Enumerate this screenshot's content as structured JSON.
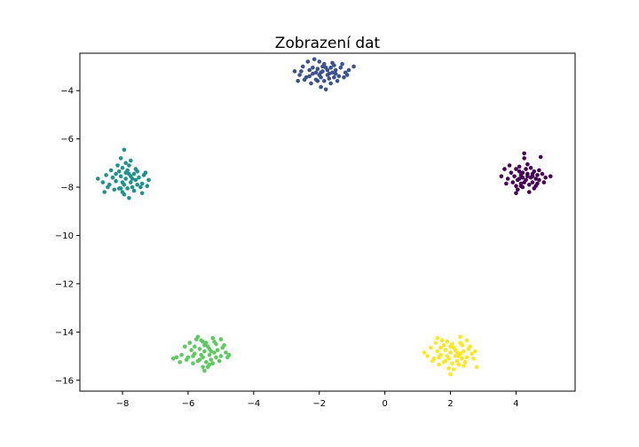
{
  "chart_data": {
    "type": "scatter",
    "title": "Zobrazení dat",
    "xlabel": "",
    "ylabel": "",
    "xlim": [
      -9.3,
      5.8
    ],
    "ylim": [
      -16.45,
      -2.45
    ],
    "xticks": [
      -8,
      -6,
      -4,
      -2,
      0,
      2,
      4
    ],
    "yticks": [
      -4,
      -6,
      -8,
      -10,
      -12,
      -14,
      -16
    ],
    "xtick_labels": [
      "−8",
      "−6",
      "−4",
      "−2",
      "0",
      "2",
      "4"
    ],
    "ytick_labels": [
      "−4",
      "−6",
      "−8",
      "−10",
      "−12",
      "−14",
      "−16"
    ],
    "grid": false,
    "legend": "none",
    "clusters": [
      {
        "color": "#440154",
        "points": [
          [
            4.2,
            -7.6
          ],
          [
            4.35,
            -7.55
          ],
          [
            4.05,
            -7.7
          ],
          [
            4.5,
            -7.45
          ],
          [
            4.1,
            -7.35
          ],
          [
            4.25,
            -7.8
          ],
          [
            3.95,
            -7.55
          ],
          [
            4.4,
            -7.9
          ],
          [
            4.6,
            -7.65
          ],
          [
            4.15,
            -7.5
          ],
          [
            3.85,
            -7.4
          ],
          [
            4.3,
            -7.25
          ],
          [
            4.7,
            -7.7
          ],
          [
            4.0,
            -7.95
          ],
          [
            4.45,
            -7.6
          ],
          [
            4.55,
            -7.35
          ],
          [
            3.75,
            -7.65
          ],
          [
            4.2,
            -8.0
          ],
          [
            4.65,
            -7.5
          ],
          [
            4.1,
            -7.15
          ],
          [
            4.35,
            -7.05
          ],
          [
            4.8,
            -7.45
          ],
          [
            3.65,
            -7.25
          ],
          [
            4.9,
            -7.6
          ],
          [
            4.25,
            -6.8
          ],
          [
            4.75,
            -6.75
          ],
          [
            3.55,
            -7.55
          ],
          [
            4.4,
            -8.2
          ],
          [
            4.05,
            -8.1
          ],
          [
            5.05,
            -7.55
          ],
          [
            4.5,
            -7.8
          ],
          [
            3.9,
            -7.8
          ],
          [
            4.15,
            -7.85
          ],
          [
            4.6,
            -7.95
          ],
          [
            4.3,
            -7.7
          ],
          [
            4.0,
            -7.25
          ],
          [
            4.45,
            -7.2
          ],
          [
            4.55,
            -8.05
          ],
          [
            3.8,
            -7.1
          ],
          [
            4.2,
            -7.4
          ],
          [
            4.7,
            -7.3
          ],
          [
            4.1,
            -7.65
          ],
          [
            4.35,
            -7.45
          ],
          [
            3.7,
            -7.85
          ],
          [
            4.85,
            -7.8
          ],
          [
            4.25,
            -6.6
          ],
          [
            4.0,
            -8.25
          ],
          [
            4.5,
            -7.55
          ],
          [
            4.65,
            -7.85
          ],
          [
            4.15,
            -7.95
          ]
        ]
      },
      {
        "color": "#3b528b",
        "points": [
          [
            -1.9,
            -3.2
          ],
          [
            -1.75,
            -3.35
          ],
          [
            -2.05,
            -3.1
          ],
          [
            -1.6,
            -3.25
          ],
          [
            -1.95,
            -3.45
          ],
          [
            -1.8,
            -3.05
          ],
          [
            -2.2,
            -3.3
          ],
          [
            -1.7,
            -3.5
          ],
          [
            -1.5,
            -3.15
          ],
          [
            -2.1,
            -3.55
          ],
          [
            -1.85,
            -2.9
          ],
          [
            -2.3,
            -3.15
          ],
          [
            -1.4,
            -3.4
          ],
          [
            -2.0,
            -2.8
          ],
          [
            -1.65,
            -3.7
          ],
          [
            -2.4,
            -3.45
          ],
          [
            -1.55,
            -2.95
          ],
          [
            -1.2,
            -3.25
          ],
          [
            -2.5,
            -3.0
          ],
          [
            -1.95,
            -3.85
          ],
          [
            -2.25,
            -3.7
          ],
          [
            -1.35,
            -3.05
          ],
          [
            -2.6,
            -3.35
          ],
          [
            -1.1,
            -3.15
          ],
          [
            -2.35,
            -2.8
          ],
          [
            -0.95,
            -3.0
          ],
          [
            -2.15,
            -2.7
          ],
          [
            -2.75,
            -3.2
          ],
          [
            -1.8,
            -3.95
          ],
          [
            -1.45,
            -3.6
          ],
          [
            -2.05,
            -3.6
          ],
          [
            -1.7,
            -3.3
          ],
          [
            -1.9,
            -3.0
          ],
          [
            -1.6,
            -2.85
          ],
          [
            -2.45,
            -3.55
          ],
          [
            -1.25,
            -3.45
          ],
          [
            -2.2,
            -3.05
          ],
          [
            -1.75,
            -3.15
          ],
          [
            -2.0,
            -3.35
          ],
          [
            -1.55,
            -3.45
          ],
          [
            -1.85,
            -3.6
          ],
          [
            -2.65,
            -3.6
          ],
          [
            -1.3,
            -2.9
          ],
          [
            -2.1,
            -3.25
          ],
          [
            -1.65,
            -3.05
          ],
          [
            -1.95,
            -3.25
          ],
          [
            -1.5,
            -3.3
          ],
          [
            -2.3,
            -3.4
          ],
          [
            -1.15,
            -3.35
          ],
          [
            -2.55,
            -3.2
          ]
        ]
      },
      {
        "color": "#21918c",
        "points": [
          [
            -7.9,
            -7.65
          ],
          [
            -7.75,
            -7.8
          ],
          [
            -8.05,
            -7.55
          ],
          [
            -7.6,
            -7.7
          ],
          [
            -7.95,
            -7.9
          ],
          [
            -7.8,
            -7.45
          ],
          [
            -8.2,
            -7.75
          ],
          [
            -7.7,
            -8.0
          ],
          [
            -7.5,
            -7.6
          ],
          [
            -8.1,
            -8.05
          ],
          [
            -7.85,
            -7.3
          ],
          [
            -8.3,
            -7.6
          ],
          [
            -7.4,
            -7.85
          ],
          [
            -8.0,
            -7.2
          ],
          [
            -7.65,
            -8.15
          ],
          [
            -8.4,
            -7.9
          ],
          [
            -7.55,
            -7.35
          ],
          [
            -7.2,
            -7.7
          ],
          [
            -8.5,
            -7.5
          ],
          [
            -7.95,
            -8.3
          ],
          [
            -8.25,
            -8.1
          ],
          [
            -7.35,
            -7.5
          ],
          [
            -8.6,
            -7.8
          ],
          [
            -7.25,
            -7.95
          ],
          [
            -8.35,
            -7.3
          ],
          [
            -7.9,
            -7.0
          ],
          [
            -8.15,
            -7.1
          ],
          [
            -8.75,
            -7.65
          ],
          [
            -7.8,
            -8.45
          ],
          [
            -7.45,
            -8.0
          ],
          [
            -8.05,
            -8.05
          ],
          [
            -7.7,
            -7.65
          ],
          [
            -7.9,
            -7.4
          ],
          [
            -7.6,
            -7.25
          ],
          [
            -8.45,
            -8.0
          ],
          [
            -7.3,
            -7.4
          ],
          [
            -8.2,
            -7.45
          ],
          [
            -7.75,
            -7.55
          ],
          [
            -8.0,
            -7.8
          ],
          [
            -7.55,
            -7.9
          ],
          [
            -7.85,
            -8.05
          ],
          [
            -8.05,
            -6.8
          ],
          [
            -7.95,
            -6.45
          ],
          [
            -7.75,
            -6.9
          ],
          [
            -7.8,
            -7.1
          ],
          [
            -8.55,
            -8.2
          ],
          [
            -7.4,
            -8.25
          ],
          [
            -8.1,
            -7.35
          ],
          [
            -7.65,
            -7.45
          ],
          [
            -8.0,
            -8.2
          ]
        ]
      },
      {
        "color": "#5ec962",
        "points": [
          [
            -5.5,
            -14.8
          ],
          [
            -5.35,
            -14.95
          ],
          [
            -5.65,
            -14.7
          ],
          [
            -5.2,
            -14.85
          ],
          [
            -5.55,
            -15.05
          ],
          [
            -5.4,
            -14.6
          ],
          [
            -5.8,
            -14.9
          ],
          [
            -5.3,
            -15.15
          ],
          [
            -5.1,
            -14.75
          ],
          [
            -5.7,
            -15.2
          ],
          [
            -5.45,
            -14.45
          ],
          [
            -5.9,
            -14.75
          ],
          [
            -5.0,
            -15.0
          ],
          [
            -5.6,
            -14.35
          ],
          [
            -5.25,
            -15.3
          ],
          [
            -6.0,
            -15.05
          ],
          [
            -5.15,
            -14.5
          ],
          [
            -4.85,
            -14.85
          ],
          [
            -6.1,
            -14.6
          ],
          [
            -5.55,
            -15.45
          ],
          [
            -5.85,
            -15.3
          ],
          [
            -4.95,
            -14.65
          ],
          [
            -6.2,
            -14.95
          ],
          [
            -4.8,
            -15.05
          ],
          [
            -5.95,
            -14.45
          ],
          [
            -5.5,
            -15.6
          ],
          [
            -5.75,
            -14.3
          ],
          [
            -6.35,
            -15.05
          ],
          [
            -5.4,
            -15.45
          ],
          [
            -5.05,
            -15.2
          ],
          [
            -5.65,
            -15.15
          ],
          [
            -5.3,
            -14.8
          ],
          [
            -5.5,
            -14.55
          ],
          [
            -5.2,
            -14.4
          ],
          [
            -6.05,
            -15.15
          ],
          [
            -4.9,
            -14.55
          ],
          [
            -5.8,
            -14.6
          ],
          [
            -5.35,
            -14.7
          ],
          [
            -5.6,
            -14.95
          ],
          [
            -5.15,
            -15.05
          ],
          [
            -5.45,
            -15.25
          ],
          [
            -6.45,
            -15.1
          ],
          [
            -6.25,
            -15.25
          ],
          [
            -5.0,
            -14.3
          ],
          [
            -5.7,
            -14.2
          ],
          [
            -5.25,
            -14.25
          ],
          [
            -4.75,
            -14.95
          ],
          [
            -5.85,
            -15.0
          ],
          [
            -5.35,
            -15.35
          ],
          [
            -5.55,
            -14.4
          ]
        ]
      },
      {
        "color": "#fde725",
        "points": [
          [
            2.0,
            -14.85
          ],
          [
            2.15,
            -15.0
          ],
          [
            1.85,
            -14.75
          ],
          [
            2.3,
            -14.9
          ],
          [
            1.95,
            -15.1
          ],
          [
            2.1,
            -14.65
          ],
          [
            1.7,
            -14.95
          ],
          [
            2.2,
            -15.2
          ],
          [
            2.4,
            -14.8
          ],
          [
            1.8,
            -15.25
          ],
          [
            2.05,
            -14.5
          ],
          [
            1.6,
            -14.8
          ],
          [
            2.5,
            -15.05
          ],
          [
            1.9,
            -14.4
          ],
          [
            2.25,
            -15.35
          ],
          [
            1.5,
            -15.1
          ],
          [
            2.35,
            -14.55
          ],
          [
            2.65,
            -14.9
          ],
          [
            1.4,
            -14.65
          ],
          [
            1.95,
            -15.5
          ],
          [
            1.65,
            -15.35
          ],
          [
            2.55,
            -14.7
          ],
          [
            1.3,
            -15.0
          ],
          [
            2.7,
            -15.1
          ],
          [
            1.55,
            -14.45
          ],
          [
            2.0,
            -15.75
          ],
          [
            1.75,
            -14.35
          ],
          [
            2.8,
            -15.45
          ],
          [
            2.1,
            -15.55
          ],
          [
            2.45,
            -15.25
          ],
          [
            1.85,
            -15.2
          ],
          [
            2.2,
            -14.85
          ],
          [
            2.0,
            -14.6
          ],
          [
            2.3,
            -14.45
          ],
          [
            1.45,
            -15.2
          ],
          [
            2.6,
            -14.6
          ],
          [
            1.7,
            -14.65
          ],
          [
            2.15,
            -14.75
          ],
          [
            1.9,
            -15.0
          ],
          [
            2.35,
            -15.1
          ],
          [
            2.05,
            -15.3
          ],
          [
            1.6,
            -14.25
          ],
          [
            2.3,
            -14.2
          ],
          [
            2.75,
            -14.8
          ],
          [
            1.2,
            -14.85
          ],
          [
            2.5,
            -14.35
          ],
          [
            1.8,
            -14.55
          ],
          [
            2.25,
            -15.0
          ],
          [
            1.65,
            -15.05
          ],
          [
            2.4,
            -15.4
          ]
        ]
      }
    ]
  }
}
